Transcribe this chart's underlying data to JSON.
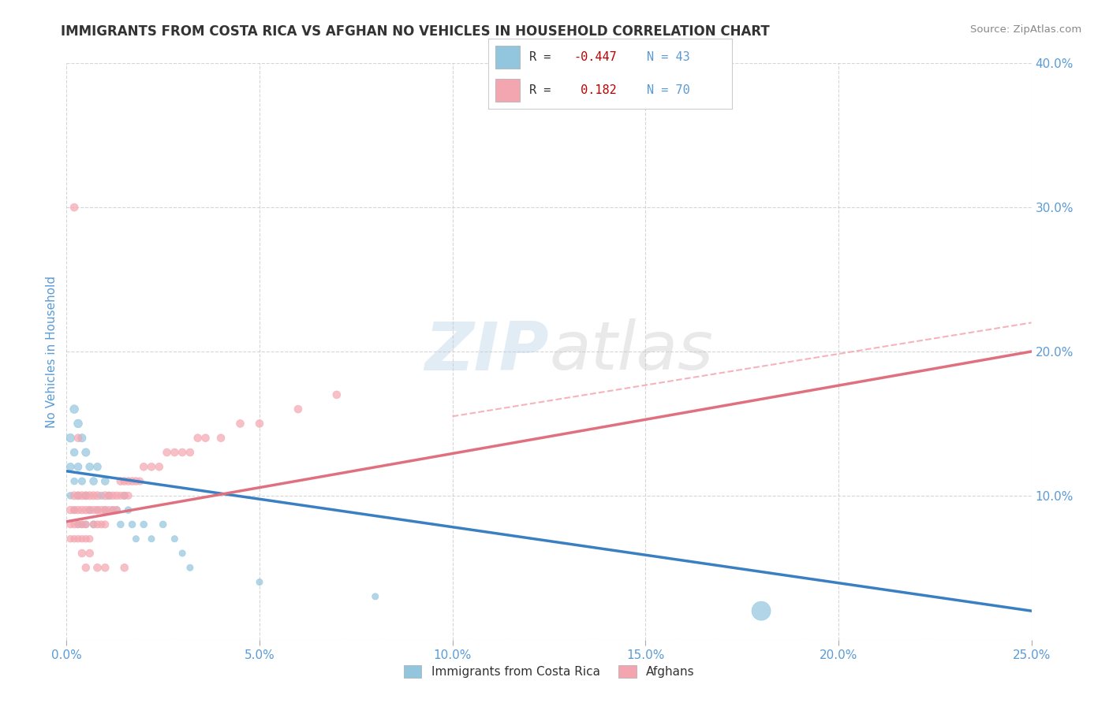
{
  "title": "IMMIGRANTS FROM COSTA RICA VS AFGHAN NO VEHICLES IN HOUSEHOLD CORRELATION CHART",
  "source_text": "Source: ZipAtlas.com",
  "ylabel": "No Vehicles in Household",
  "xlim": [
    0.0,
    0.25
  ],
  "ylim": [
    0.0,
    0.4
  ],
  "xticks": [
    0.0,
    0.05,
    0.1,
    0.15,
    0.2,
    0.25
  ],
  "yticks": [
    0.0,
    0.1,
    0.2,
    0.3,
    0.4
  ],
  "xtick_labels": [
    "0.0%",
    "5.0%",
    "10.0%",
    "15.0%",
    "20.0%",
    "25.0%"
  ],
  "ytick_labels_right": [
    "",
    "10.0%",
    "20.0%",
    "30.0%",
    "40.0%"
  ],
  "series1_name": "Immigrants from Costa Rica",
  "series1_color": "#92C5DE",
  "series2_name": "Afghans",
  "series2_color": "#F4A6B0",
  "watermark_zip": "ZIP",
  "watermark_atlas": "atlas",
  "background_color": "#FFFFFF",
  "grid_color": "#CCCCCC",
  "title_color": "#333333",
  "axis_label_color": "#5B9BD5",
  "tick_label_color": "#5B9BD5",
  "series1_x": [
    0.001,
    0.001,
    0.001,
    0.002,
    0.002,
    0.002,
    0.002,
    0.003,
    0.003,
    0.003,
    0.003,
    0.004,
    0.004,
    0.004,
    0.005,
    0.005,
    0.005,
    0.006,
    0.006,
    0.007,
    0.007,
    0.008,
    0.008,
    0.009,
    0.01,
    0.01,
    0.011,
    0.012,
    0.013,
    0.014,
    0.015,
    0.016,
    0.017,
    0.018,
    0.02,
    0.022,
    0.025,
    0.028,
    0.03,
    0.032,
    0.05,
    0.08,
    0.18
  ],
  "series1_y": [
    0.14,
    0.12,
    0.1,
    0.16,
    0.13,
    0.11,
    0.09,
    0.15,
    0.12,
    0.1,
    0.08,
    0.14,
    0.11,
    0.08,
    0.13,
    0.1,
    0.08,
    0.12,
    0.09,
    0.11,
    0.08,
    0.12,
    0.09,
    0.1,
    0.11,
    0.09,
    0.1,
    0.09,
    0.09,
    0.08,
    0.1,
    0.09,
    0.08,
    0.07,
    0.08,
    0.07,
    0.08,
    0.07,
    0.06,
    0.05,
    0.04,
    0.03,
    0.02
  ],
  "series1_sizes": [
    60,
    50,
    40,
    60,
    50,
    40,
    35,
    60,
    50,
    40,
    35,
    55,
    45,
    35,
    55,
    45,
    35,
    50,
    40,
    50,
    40,
    50,
    40,
    45,
    50,
    40,
    45,
    45,
    45,
    40,
    45,
    40,
    40,
    35,
    40,
    35,
    40,
    35,
    35,
    35,
    35,
    35,
    300
  ],
  "series2_x": [
    0.001,
    0.001,
    0.001,
    0.002,
    0.002,
    0.002,
    0.002,
    0.003,
    0.003,
    0.003,
    0.003,
    0.004,
    0.004,
    0.004,
    0.004,
    0.005,
    0.005,
    0.005,
    0.005,
    0.006,
    0.006,
    0.006,
    0.007,
    0.007,
    0.007,
    0.008,
    0.008,
    0.008,
    0.009,
    0.009,
    0.01,
    0.01,
    0.01,
    0.011,
    0.011,
    0.012,
    0.012,
    0.013,
    0.013,
    0.014,
    0.014,
    0.015,
    0.015,
    0.016,
    0.016,
    0.017,
    0.018,
    0.019,
    0.02,
    0.022,
    0.024,
    0.026,
    0.028,
    0.03,
    0.032,
    0.034,
    0.036,
    0.04,
    0.045,
    0.05,
    0.06,
    0.07,
    0.002,
    0.003,
    0.004,
    0.005,
    0.006,
    0.008,
    0.01,
    0.015
  ],
  "series2_y": [
    0.09,
    0.08,
    0.07,
    0.1,
    0.09,
    0.08,
    0.07,
    0.1,
    0.09,
    0.08,
    0.07,
    0.1,
    0.09,
    0.08,
    0.07,
    0.1,
    0.09,
    0.08,
    0.07,
    0.1,
    0.09,
    0.07,
    0.1,
    0.09,
    0.08,
    0.1,
    0.09,
    0.08,
    0.09,
    0.08,
    0.1,
    0.09,
    0.08,
    0.1,
    0.09,
    0.1,
    0.09,
    0.1,
    0.09,
    0.11,
    0.1,
    0.11,
    0.1,
    0.11,
    0.1,
    0.11,
    0.11,
    0.11,
    0.12,
    0.12,
    0.12,
    0.13,
    0.13,
    0.13,
    0.13,
    0.14,
    0.14,
    0.14,
    0.15,
    0.15,
    0.16,
    0.17,
    0.3,
    0.14,
    0.06,
    0.05,
    0.06,
    0.05,
    0.05,
    0.05
  ],
  "series2_sizes": [
    50,
    45,
    40,
    55,
    50,
    45,
    40,
    55,
    50,
    45,
    40,
    55,
    50,
    45,
    40,
    55,
    50,
    45,
    40,
    55,
    50,
    40,
    55,
    50,
    45,
    55,
    50,
    45,
    50,
    45,
    55,
    50,
    45,
    50,
    45,
    50,
    45,
    50,
    45,
    50,
    45,
    50,
    45,
    50,
    45,
    50,
    50,
    45,
    50,
    50,
    50,
    50,
    50,
    50,
    50,
    50,
    50,
    50,
    50,
    50,
    50,
    50,
    50,
    50,
    50,
    50,
    50,
    50,
    50,
    50
  ],
  "trend1_x_start": 0.0,
  "trend1_x_end": 0.25,
  "trend1_y_start": 0.117,
  "trend1_y_end": 0.02,
  "trend2_x_start": 0.0,
  "trend2_x_end": 0.25,
  "trend2_y_start": 0.082,
  "trend2_y_end": 0.2
}
